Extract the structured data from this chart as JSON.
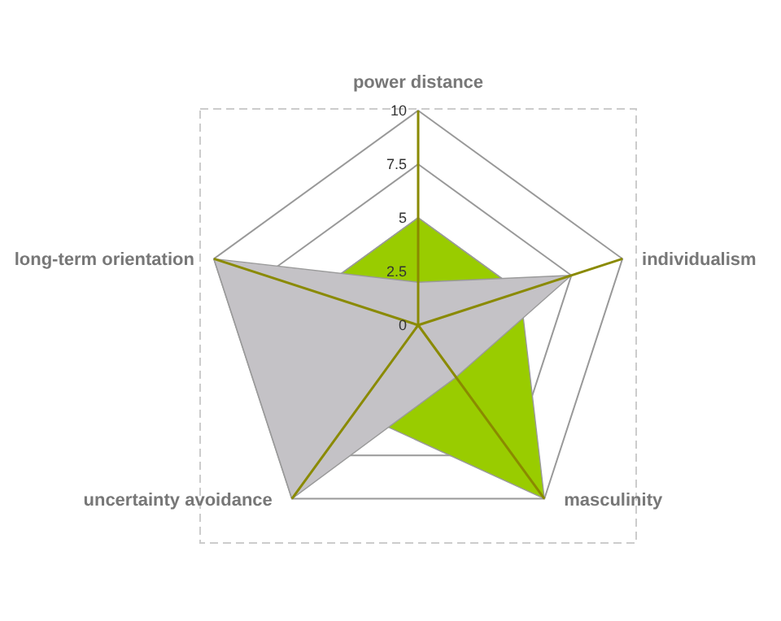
{
  "chart_data": {
    "type": "radar",
    "categories": [
      "power distance",
      "individualism",
      "masculinity",
      "uncertainty avoidance",
      "long-term orientation"
    ],
    "series": [
      {
        "color": "#99cc00",
        "values": [
          5,
          5,
          10,
          5,
          5
        ]
      },
      {
        "color": "#c4c2c6",
        "values": [
          2,
          7.5,
          3,
          10,
          10
        ]
      }
    ],
    "ylim": [
      0,
      10
    ],
    "yticks": [
      0,
      2.5,
      5,
      7.5,
      10
    ]
  }
}
